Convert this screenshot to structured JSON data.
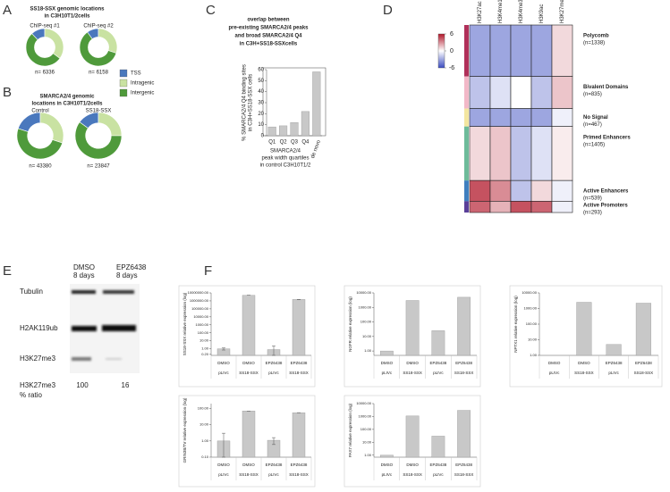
{
  "panel_labels": [
    "A",
    "B",
    "C",
    "D",
    "E",
    "F"
  ],
  "chart_data": [
    {
      "type": "pie",
      "title": [
        "SS18-SSX genomic locations",
        "in C3H10T1/2cells"
      ],
      "colors": [
        "#4a78bd",
        "#c9e2a2",
        "#4f9a3b"
      ],
      "series": [
        {
          "name": "ChIP-seq #1",
          "values": [
            12,
            35,
            53
          ],
          "annotation": "n= 6336"
        },
        {
          "name": "ChIP-seq #2",
          "values": [
            10,
            30,
            60
          ],
          "annotation": "n= 6158"
        }
      ]
    },
    {
      "type": "pie",
      "title": [
        "SMARCA2/4 genomic",
        "locations in C3H10T1/2cells"
      ],
      "categories": [
        "TSS",
        "Intragenic",
        "Intergenic"
      ],
      "colors": [
        "#4a78bd",
        "#c9e2a2",
        "#4f9a3b"
      ],
      "series": [
        {
          "name": "Control",
          "values": [
            20,
            30,
            50
          ],
          "annotation": "n= 43380"
        },
        {
          "name": "SS18-SSX",
          "values": [
            15,
            25,
            60
          ],
          "annotation": "n= 23847"
        }
      ]
    },
    {
      "type": "bar",
      "title": [
        "overlap between",
        "pre-existing SMARCA2/4 peaks",
        "and broad SMARCA2/4 Q4",
        "in C3H+SS18-SSXcells"
      ],
      "ylabel": [
        "% SMARCA2/4 Q4 binding sites",
        "in C3H+SS18-SSX cells"
      ],
      "xlabel": [
        "SMARCA2/4",
        "peak width quartiles",
        "in control C3H10T1/2"
      ],
      "categories": [
        "Q1",
        "Q2",
        "Q3",
        "Q4",
        "de novo"
      ],
      "label_colors": [
        "#000000",
        "#000000",
        "#000000",
        "#000000",
        "#e02020"
      ],
      "values": [
        8,
        9,
        12,
        22,
        58
      ],
      "color": "#c8c8c8",
      "ylim": [
        0,
        60
      ],
      "yticks": [
        0,
        10,
        20,
        30,
        40,
        50,
        60
      ]
    },
    {
      "type": "heatmap",
      "columns": [
        "H3K27ac",
        "H3K4me1",
        "H3K4me3",
        "H3K9ac",
        "H3K27me3"
      ],
      "groups": [
        "Polycomb",
        "Bivalent Domains",
        "No Signal",
        "Primed Enhancers",
        "Active Enhancers",
        "Active Promoters"
      ],
      "sizes": [
        1338,
        835,
        467,
        1405,
        539,
        293
      ],
      "size_labels": [
        "(n=1338)",
        "(n=835)",
        "(n=467)",
        "(n=1405)",
        "(n=539)",
        "(n=293)"
      ],
      "group_colors": [
        "#b0305a",
        "#f2b8c8",
        "#f3e6a0",
        "#6dbb9a",
        "#3f7fbf",
        "#5a3f99"
      ],
      "values": [
        [
          -3,
          -3,
          -3,
          -3,
          1
        ],
        [
          -2,
          -1,
          0,
          -2,
          1.5
        ],
        [
          -3,
          -3,
          -3,
          -3,
          -0.5
        ],
        [
          1,
          1.5,
          -2,
          -1,
          0.5
        ],
        [
          4.5,
          3,
          -2,
          1,
          -0.5
        ],
        [
          4,
          2,
          4.5,
          4,
          -0.5
        ]
      ],
      "zlim": [
        -6,
        6
      ],
      "colorbar_ticks": [
        6,
        0,
        -6
      ]
    },
    {
      "type": "bar",
      "log_scale": true,
      "ylabel": "SS18-SSX relative expression (log)",
      "categories": [
        [
          "DMSO",
          "pLIVc"
        ],
        [
          "DMSO",
          "SS18-SSX"
        ],
        [
          "EPZ6438",
          "pLIVc"
        ],
        [
          "EPZ6438",
          "SS18-SSX"
        ]
      ],
      "values": [
        1,
        5000000,
        0.8,
        1500000
      ],
      "errors": [
        0.3,
        0,
        1.5,
        0
      ],
      "color": "#c8c8c8",
      "ylim": [
        0.15,
        10000000
      ],
      "yticks": [
        {
          "value": 0.2,
          "label": "0.20"
        },
        {
          "value": 1,
          "label": "1.00"
        },
        {
          "value": 10,
          "label": "10.00"
        },
        {
          "value": 100,
          "label": "100.00"
        },
        {
          "value": 1000,
          "label": "1000.00"
        },
        {
          "value": 10000,
          "label": "10000.00"
        },
        {
          "value": 100000,
          "label": "100000.00"
        },
        {
          "value": 1000000,
          "label": "1000000.00"
        },
        {
          "value": 10000000,
          "label": "10000000.00"
        }
      ]
    },
    {
      "type": "bar",
      "log_scale": true,
      "ylabel": "NGFR relative expression (log)",
      "categories": [
        [
          "DMSO",
          "pLIVc"
        ],
        [
          "DMSO",
          "SS18-SSX"
        ],
        [
          "EPZ6438",
          "pLIVc"
        ],
        [
          "EPZ6438",
          "SS18-SSX"
        ]
      ],
      "values": [
        1,
        3000,
        25,
        5000
      ],
      "color": "#c8c8c8",
      "ylim": [
        0.5,
        10000
      ],
      "yticks": [
        {
          "value": 1,
          "label": "1.00"
        },
        {
          "value": 10,
          "label": "10.00"
        },
        {
          "value": 100,
          "label": "100.00"
        },
        {
          "value": 1000,
          "label": "1000.00"
        },
        {
          "value": 10000,
          "label": "10000.00"
        }
      ]
    },
    {
      "type": "bar",
      "log_scale": true,
      "ylabel": "NPTX1 relative expression (log)",
      "categories": [
        [
          "DMSO",
          "pLIVc"
        ],
        [
          "DMSO",
          "SS18-SSX"
        ],
        [
          "EPZ6438",
          "pLIVc"
        ],
        [
          "EPZ6438",
          "SS18-SSX"
        ]
      ],
      "values": [
        1,
        2500,
        5,
        2200
      ],
      "color": "#c8c8c8",
      "ylim": [
        1,
        10000
      ],
      "yticks": [
        {
          "value": 1,
          "label": "1.00"
        },
        {
          "value": 10,
          "label": "10.00"
        },
        {
          "value": 100,
          "label": "100.00"
        },
        {
          "value": 1000,
          "label": "1000.00"
        },
        {
          "value": 10000,
          "label": "10000.00"
        }
      ]
    },
    {
      "type": "bar",
      "log_scale": true,
      "ylabel": "GRIN3B/TV relative expression (log)",
      "categories": [
        [
          "DMSO",
          "pLIVc"
        ],
        [
          "DMSO",
          "SS18-SSX"
        ],
        [
          "EPZ6438",
          "pLIVc"
        ],
        [
          "EPZ6438",
          "SS18-SSX"
        ]
      ],
      "values": [
        1,
        70,
        1.1,
        55
      ],
      "errors": [
        2,
        0,
        0.5,
        0
      ],
      "color": "#c8c8c8",
      "ylim": [
        0.1,
        200
      ],
      "yticks": [
        {
          "value": 0.1,
          "label": "0.10"
        },
        {
          "value": 1,
          "label": "1.00"
        },
        {
          "value": 10,
          "label": "10.00"
        },
        {
          "value": 100,
          "label": "100.00"
        }
      ]
    },
    {
      "type": "bar",
      "log_scale": true,
      "ylabel": "PAX7 relative expression (log)",
      "categories": [
        [
          "DMSO",
          "pLIVc"
        ],
        [
          "DMSO",
          "SS18-SSX"
        ],
        [
          "EPZ6438",
          "pLIVc"
        ],
        [
          "EPZ6438",
          "SS18-SSX"
        ]
      ],
      "values": [
        1,
        1100,
        30,
        3000
      ],
      "color": "#c8c8c8",
      "ylim": [
        0.7,
        10000
      ],
      "yticks": [
        {
          "value": 1,
          "label": "1.00"
        },
        {
          "value": 10,
          "label": "10.00"
        },
        {
          "value": 100,
          "label": "100.00"
        },
        {
          "value": 1000,
          "label": "1000.00"
        },
        {
          "value": 10000,
          "label": "10000.00"
        }
      ]
    }
  ],
  "western_blot": {
    "columns": [
      [
        "DMSO",
        "8 days"
      ],
      [
        "EPZ6438",
        "8 days"
      ]
    ],
    "rows": [
      "Tubulin",
      "H2AK119ub",
      "H3K27me3"
    ],
    "ratio_label": [
      "H3K27me3",
      "% ratio"
    ],
    "ratio_values": [
      100,
      16
    ]
  }
}
